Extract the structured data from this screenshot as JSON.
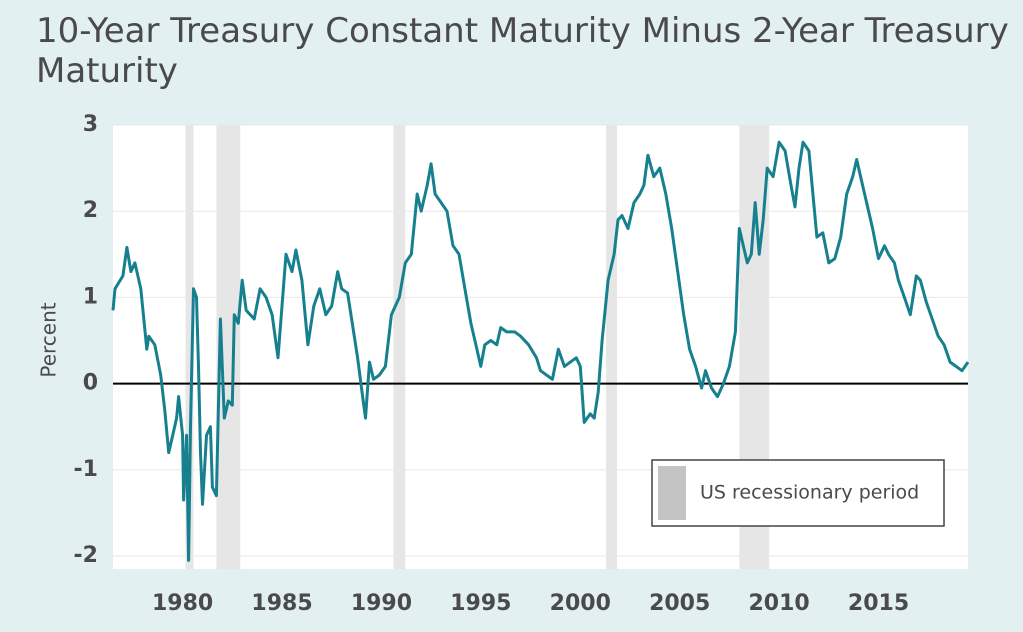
{
  "chart_data": {
    "type": "line",
    "title": "10-Year Treasury Constant Maturity Minus 2-Year Treasury Maturity",
    "y_label": "Percent",
    "legend_label": "US recessionary period",
    "recessions": [
      [
        1980.15,
        1980.55
      ],
      [
        1981.7,
        1982.9
      ],
      [
        1990.6,
        1991.2
      ],
      [
        2001.3,
        2001.85
      ],
      [
        2008.0,
        2009.5
      ]
    ],
    "xlim": [
      1976.5,
      2019.5
    ],
    "xticks": [
      1980,
      1985,
      1990,
      1995,
      2000,
      2005,
      2010,
      2015
    ],
    "ylim": [
      -2.15,
      3
    ],
    "yticks": [
      -2,
      -1,
      0,
      1,
      2,
      3
    ],
    "grid": true,
    "series": [
      {
        "name": "10Y minus 2Y",
        "color": "#17808e",
        "x": [
          1976.5,
          1976.6,
          1977.0,
          1977.2,
          1977.4,
          1977.6,
          1977.9,
          1978.2,
          1978.3,
          1978.6,
          1978.9,
          1979.1,
          1979.3,
          1979.5,
          1979.7,
          1979.8,
          1980.0,
          1980.05,
          1980.2,
          1980.3,
          1980.4,
          1980.55,
          1980.7,
          1980.8,
          1980.9,
          1981.0,
          1981.2,
          1981.4,
          1981.5,
          1981.7,
          1981.9,
          1982.1,
          1982.3,
          1982.5,
          1982.6,
          1982.8,
          1983.0,
          1983.2,
          1983.6,
          1983.9,
          1984.2,
          1984.5,
          1984.8,
          1985.0,
          1985.2,
          1985.5,
          1985.7,
          1986.0,
          1986.3,
          1986.6,
          1986.9,
          1987.2,
          1987.5,
          1987.8,
          1988.0,
          1988.3,
          1988.6,
          1988.8,
          1989.0,
          1989.2,
          1989.4,
          1989.6,
          1989.9,
          1990.2,
          1990.5,
          1990.9,
          1991.2,
          1991.5,
          1991.8,
          1992.0,
          1992.3,
          1992.5,
          1992.7,
          1993.0,
          1993.3,
          1993.6,
          1993.9,
          1994.2,
          1994.5,
          1994.8,
          1995.0,
          1995.2,
          1995.5,
          1995.8,
          1996.0,
          1996.3,
          1996.7,
          1997.0,
          1997.4,
          1997.8,
          1998.0,
          1998.3,
          1998.6,
          1998.9,
          1999.2,
          1999.5,
          1999.8,
          2000.0,
          2000.2,
          2000.5,
          2000.7,
          2000.9,
          2001.1,
          2001.4,
          2001.7,
          2001.9,
          2002.1,
          2002.4,
          2002.7,
          2003.0,
          2003.2,
          2003.4,
          2003.7,
          2004.0,
          2004.3,
          2004.6,
          2004.9,
          2005.2,
          2005.5,
          2005.8,
          2006.1,
          2006.3,
          2006.6,
          2006.9,
          2007.2,
          2007.5,
          2007.8,
          2008.0,
          2008.2,
          2008.4,
          2008.6,
          2008.8,
          2009.0,
          2009.2,
          2009.4,
          2009.7,
          2010.0,
          2010.3,
          2010.6,
          2010.8,
          2011.0,
          2011.2,
          2011.5,
          2011.7,
          2011.9,
          2012.2,
          2012.5,
          2012.8,
          2013.1,
          2013.4,
          2013.7,
          2013.9,
          2014.1,
          2014.4,
          2014.7,
          2015.0,
          2015.3,
          2015.5,
          2015.8,
          2016.0,
          2016.3,
          2016.6,
          2016.9,
          2017.1,
          2017.4,
          2017.7,
          2018.0,
          2018.3,
          2018.6,
          2018.9,
          2019.2,
          2019.5
        ],
        "values": [
          0.85,
          1.1,
          1.25,
          1.58,
          1.3,
          1.4,
          1.1,
          0.4,
          0.55,
          0.45,
          0.1,
          -0.3,
          -0.8,
          -0.6,
          -0.4,
          -0.15,
          -0.6,
          -1.35,
          -0.6,
          -2.05,
          -0.5,
          1.1,
          1.0,
          0.2,
          -0.8,
          -1.4,
          -0.6,
          -0.5,
          -1.2,
          -1.3,
          0.75,
          -0.4,
          -0.2,
          -0.25,
          0.8,
          0.7,
          1.2,
          0.85,
          0.75,
          1.1,
          1.0,
          0.8,
          0.3,
          0.9,
          1.5,
          1.3,
          1.55,
          1.2,
          0.45,
          0.9,
          1.1,
          0.8,
          0.9,
          1.3,
          1.1,
          1.05,
          0.6,
          0.3,
          -0.05,
          -0.4,
          0.25,
          0.05,
          0.1,
          0.2,
          0.8,
          1.0,
          1.4,
          1.5,
          2.2,
          2.0,
          2.3,
          2.55,
          2.2,
          2.1,
          2.0,
          1.6,
          1.5,
          1.1,
          0.7,
          0.4,
          0.2,
          0.45,
          0.5,
          0.45,
          0.65,
          0.6,
          0.6,
          0.55,
          0.45,
          0.3,
          0.15,
          0.1,
          0.05,
          0.4,
          0.2,
          0.25,
          0.3,
          0.2,
          -0.45,
          -0.35,
          -0.4,
          -0.1,
          0.5,
          1.2,
          1.5,
          1.9,
          1.95,
          1.8,
          2.1,
          2.2,
          2.3,
          2.65,
          2.4,
          2.5,
          2.2,
          1.8,
          1.3,
          0.8,
          0.4,
          0.2,
          -0.05,
          0.15,
          -0.05,
          -0.15,
          0.0,
          0.2,
          0.6,
          1.8,
          1.6,
          1.4,
          1.5,
          2.1,
          1.5,
          1.9,
          2.5,
          2.4,
          2.8,
          2.7,
          2.3,
          2.05,
          2.5,
          2.8,
          2.7,
          2.2,
          1.7,
          1.75,
          1.4,
          1.45,
          1.7,
          2.2,
          2.4,
          2.6,
          2.4,
          2.1,
          1.8,
          1.45,
          1.6,
          1.5,
          1.4,
          1.2,
          1.0,
          0.8,
          1.25,
          1.2,
          0.95,
          0.75,
          0.55,
          0.45,
          0.25,
          0.2,
          0.15,
          0.25
        ]
      }
    ]
  }
}
